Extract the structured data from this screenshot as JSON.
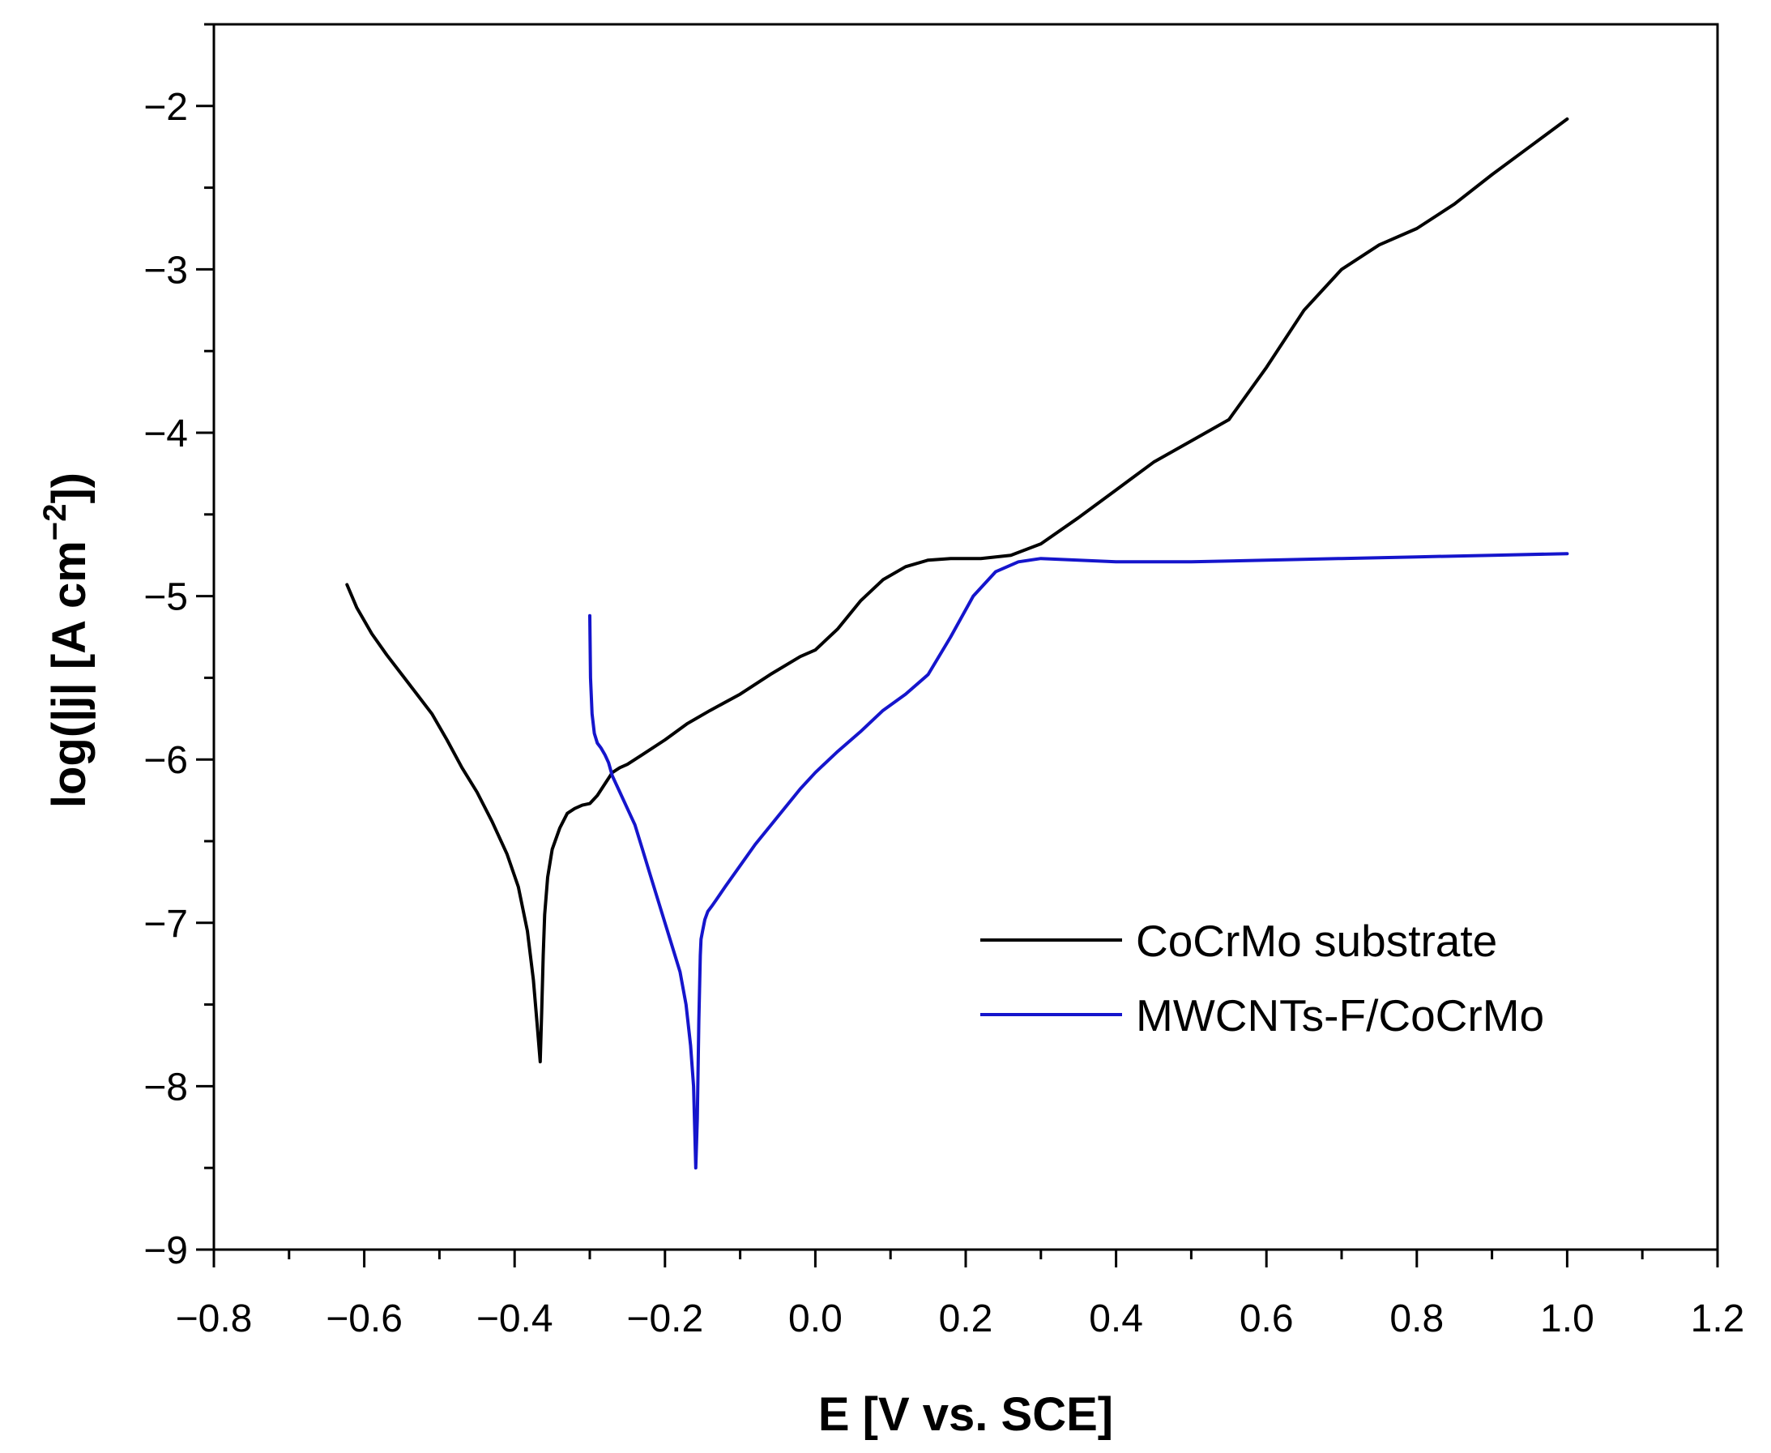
{
  "chart_data": {
    "type": "line",
    "xlabel": "E [V vs. SCE]",
    "ylabel": "log(|j| [A cm⁻²])",
    "ylabel_parts": {
      "main": "log(|j| [A cm",
      "sup": "−2",
      "tail": "])"
    },
    "xlim": [
      -0.8,
      1.2
    ],
    "ylim": [
      -9.0,
      -1.5
    ],
    "x_ticks": [
      {
        "value": -0.8,
        "label": "−0.8"
      },
      {
        "value": -0.6,
        "label": "−0.6"
      },
      {
        "value": -0.4,
        "label": "−0.4"
      },
      {
        "value": -0.2,
        "label": "−0.2"
      },
      {
        "value": 0.0,
        "label": "0.0"
      },
      {
        "value": 0.2,
        "label": "0.2"
      },
      {
        "value": 0.4,
        "label": "0.4"
      },
      {
        "value": 0.6,
        "label": "0.6"
      },
      {
        "value": 0.8,
        "label": "0.8"
      },
      {
        "value": 1.0,
        "label": "1.0"
      },
      {
        "value": 1.2,
        "label": "1.2"
      }
    ],
    "y_ticks": [
      {
        "value": -9,
        "label": "−9"
      },
      {
        "value": -8,
        "label": "−8"
      },
      {
        "value": -7,
        "label": "−7"
      },
      {
        "value": -6,
        "label": "−6"
      },
      {
        "value": -5,
        "label": "−5"
      },
      {
        "value": -4,
        "label": "−4"
      },
      {
        "value": -3,
        "label": "−3"
      },
      {
        "value": -2,
        "label": "−2"
      }
    ],
    "x_minor_step": 0.1,
    "y_minor_step": 0.5,
    "grid": false,
    "legend_position": "lower-right",
    "series": [
      {
        "name": "CoCrMo substrate",
        "color": "#000000",
        "x": [
          -0.623,
          -0.61,
          -0.59,
          -0.57,
          -0.55,
          -0.53,
          -0.51,
          -0.49,
          -0.47,
          -0.45,
          -0.43,
          -0.41,
          -0.395,
          -0.383,
          -0.375,
          -0.37,
          -0.366,
          -0.364,
          -0.362,
          -0.36,
          -0.356,
          -0.35,
          -0.34,
          -0.33,
          -0.32,
          -0.31,
          -0.3,
          -0.29,
          -0.28,
          -0.27,
          -0.26,
          -0.25,
          -0.23,
          -0.2,
          -0.17,
          -0.14,
          -0.1,
          -0.06,
          -0.02,
          0.0,
          0.03,
          0.06,
          0.09,
          0.12,
          0.15,
          0.18,
          0.22,
          0.26,
          0.3,
          0.35,
          0.4,
          0.45,
          0.5,
          0.55,
          0.6,
          0.65,
          0.7,
          0.75,
          0.8,
          0.85,
          0.9,
          0.95,
          1.0
        ],
        "y": [
          -4.93,
          -5.07,
          -5.23,
          -5.36,
          -5.48,
          -5.6,
          -5.72,
          -5.88,
          -6.05,
          -6.2,
          -6.38,
          -6.58,
          -6.78,
          -7.05,
          -7.35,
          -7.62,
          -7.85,
          -7.55,
          -7.2,
          -6.95,
          -6.72,
          -6.55,
          -6.42,
          -6.33,
          -6.3,
          -6.28,
          -6.27,
          -6.22,
          -6.15,
          -6.08,
          -6.05,
          -6.03,
          -5.97,
          -5.88,
          -5.78,
          -5.7,
          -5.6,
          -5.48,
          -5.37,
          -5.33,
          -5.2,
          -5.03,
          -4.9,
          -4.82,
          -4.78,
          -4.77,
          -4.77,
          -4.75,
          -4.68,
          -4.52,
          -4.35,
          -4.18,
          -4.05,
          -3.92,
          -3.6,
          -3.25,
          -3.0,
          -2.85,
          -2.75,
          -2.6,
          -2.42,
          -2.25,
          -2.08
        ]
      },
      {
        "name": "MWCNTs-F/CoCrMo",
        "color": "#1515cc",
        "x": [
          -0.3,
          -0.299,
          -0.297,
          -0.294,
          -0.29,
          -0.285,
          -0.28,
          -0.275,
          -0.27,
          -0.26,
          -0.25,
          -0.24,
          -0.23,
          -0.22,
          -0.21,
          -0.2,
          -0.19,
          -0.18,
          -0.172,
          -0.166,
          -0.162,
          -0.159,
          -0.157,
          -0.155,
          -0.153,
          -0.152,
          -0.15,
          -0.147,
          -0.143,
          -0.138,
          -0.132,
          -0.12,
          -0.1,
          -0.08,
          -0.05,
          -0.02,
          0.0,
          0.03,
          0.06,
          0.09,
          0.12,
          0.15,
          0.18,
          0.21,
          0.24,
          0.27,
          0.3,
          0.35,
          0.4,
          0.5,
          0.6,
          0.7,
          0.8,
          0.9,
          1.0
        ],
        "y": [
          -5.12,
          -5.5,
          -5.72,
          -5.84,
          -5.9,
          -5.93,
          -5.97,
          -6.02,
          -6.1,
          -6.2,
          -6.3,
          -6.4,
          -6.55,
          -6.7,
          -6.85,
          -7.0,
          -7.15,
          -7.3,
          -7.5,
          -7.75,
          -8.0,
          -8.5,
          -8.2,
          -7.6,
          -7.2,
          -7.1,
          -7.05,
          -6.98,
          -6.93,
          -6.9,
          -6.86,
          -6.78,
          -6.65,
          -6.52,
          -6.35,
          -6.18,
          -6.08,
          -5.95,
          -5.83,
          -5.7,
          -5.6,
          -5.48,
          -5.25,
          -5.0,
          -4.85,
          -4.79,
          -4.77,
          -4.78,
          -4.79,
          -4.79,
          -4.78,
          -4.77,
          -4.76,
          -4.75,
          -4.74
        ]
      }
    ]
  }
}
